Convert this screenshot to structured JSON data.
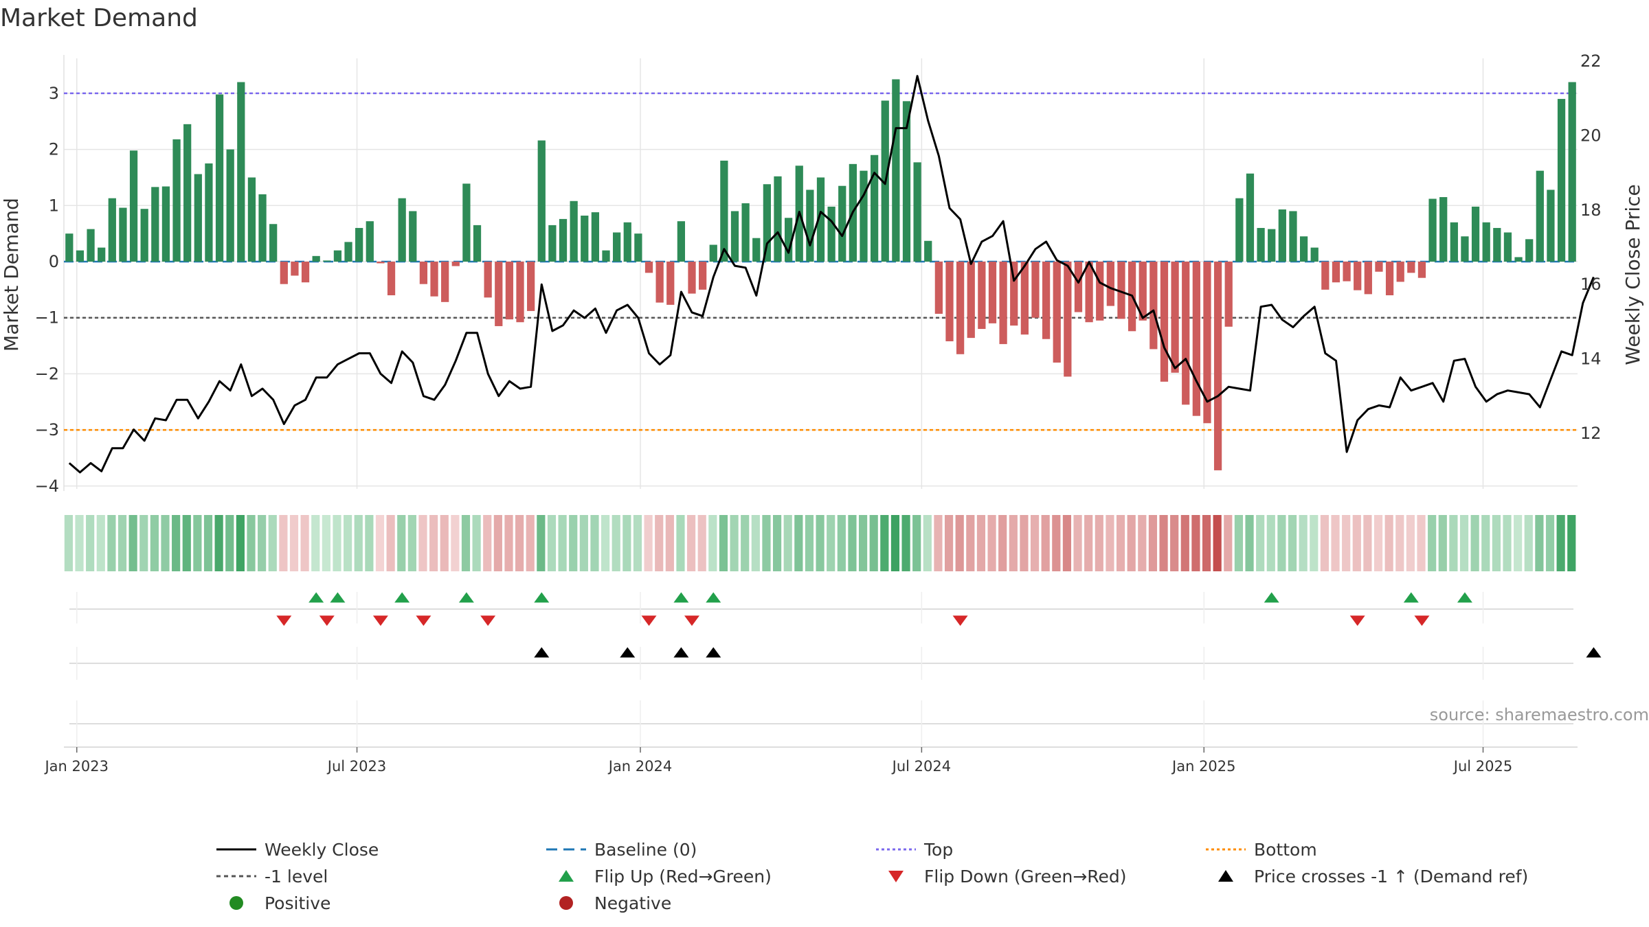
{
  "chart_data": {
    "type": "bar+line",
    "title": "Market Demand",
    "ylabel_left": "Market Demand",
    "ylabel_right": "Weekly Close Price",
    "ylim_left": [
      -4.2,
      3.6
    ],
    "ylim_right": [
      10.5,
      22.2
    ],
    "yticks_left": [
      3,
      2,
      1,
      0,
      -1,
      -2,
      -3,
      -4
    ],
    "ytick_labels_left": [
      "3",
      "2",
      "1",
      "0",
      "−1",
      "−2",
      "−3",
      "−4"
    ],
    "yticks_right": [
      12,
      14,
      16,
      18,
      20,
      22
    ],
    "ytick_labels_right": [
      "12",
      "14",
      "16",
      "18",
      "20",
      "22"
    ],
    "xticks": [
      1.2,
      27.3,
      53.7,
      79.9,
      106.2,
      132.2
    ],
    "xtick_labels": [
      "Jan 2023",
      "Jul 2023",
      "Jan 2024",
      "Jul 2024",
      "Jan 2025",
      "Jul 2025"
    ],
    "reference_lines": {
      "top": 3,
      "bottom": -3,
      "minus_one": -1,
      "baseline": 0
    },
    "demand": [
      0.5,
      0.2,
      0.58,
      0.25,
      1.13,
      0.96,
      1.98,
      0.94,
      1.33,
      1.34,
      2.18,
      2.45,
      1.56,
      1.75,
      2.98,
      2.0,
      3.2,
      1.5,
      1.2,
      0.67,
      -0.4,
      -0.25,
      -0.37,
      0.1,
      0.02,
      0.2,
      0.35,
      0.6,
      0.72,
      -0.03,
      -0.6,
      1.13,
      0.9,
      -0.4,
      -0.62,
      -0.72,
      -0.08,
      1.39,
      0.65,
      -0.64,
      -1.15,
      -1.03,
      -1.08,
      -0.88,
      2.16,
      0.65,
      0.76,
      1.08,
      0.82,
      0.88,
      0.2,
      0.52,
      0.7,
      0.5,
      -0.2,
      -0.73,
      -0.77,
      0.72,
      -0.57,
      -0.5,
      0.3,
      1.8,
      0.9,
      1.04,
      0.42,
      1.38,
      1.52,
      0.78,
      1.71,
      1.28,
      1.5,
      0.98,
      1.35,
      1.74,
      1.62,
      1.9,
      2.87,
      3.25,
      2.86,
      1.77,
      0.37,
      -0.93,
      -1.42,
      -1.65,
      -1.36,
      -1.2,
      -1.1,
      -1.47,
      -1.14,
      -1.3,
      -1.0,
      -1.38,
      -1.8,
      -2.05,
      -0.9,
      -1.08,
      -1.05,
      -0.79,
      -1.02,
      -1.24,
      -1.05,
      -1.56,
      -2.14,
      -1.98,
      -2.55,
      -2.75,
      -2.88,
      -3.72,
      -1.16,
      1.13,
      1.57,
      0.6,
      0.58,
      0.93,
      0.9,
      0.45,
      0.25,
      -0.5,
      -0.37,
      -0.35,
      -0.51,
      -0.58,
      -0.18,
      -0.6,
      -0.36,
      -0.2,
      -0.29,
      1.12,
      1.15,
      0.7,
      0.45,
      0.98,
      0.7,
      0.6,
      0.52,
      0.08,
      0.4,
      1.62,
      1.28,
      2.9,
      3.2
    ],
    "close": [
      11.2,
      10.95,
      11.2,
      10.98,
      11.6,
      11.6,
      12.1,
      11.8,
      12.4,
      12.35,
      12.9,
      12.9,
      12.4,
      12.85,
      13.4,
      13.15,
      13.85,
      13.0,
      13.2,
      12.9,
      12.25,
      12.75,
      12.9,
      13.5,
      13.5,
      13.85,
      14.0,
      14.15,
      14.15,
      13.6,
      13.35,
      14.2,
      13.9,
      13.0,
      12.9,
      13.3,
      13.95,
      14.7,
      14.7,
      13.6,
      13.0,
      13.4,
      13.2,
      13.25,
      16.0,
      14.75,
      14.9,
      15.3,
      15.1,
      15.35,
      14.7,
      15.3,
      15.45,
      15.1,
      14.15,
      13.85,
      14.1,
      15.8,
      15.25,
      15.15,
      16.2,
      16.95,
      16.5,
      16.45,
      15.7,
      17.1,
      17.4,
      16.85,
      17.95,
      17.05,
      17.95,
      17.7,
      17.3,
      17.95,
      18.4,
      19.0,
      18.7,
      20.2,
      20.2,
      21.6,
      20.4,
      19.45,
      18.05,
      17.75,
      16.55,
      17.15,
      17.3,
      17.7,
      16.1,
      16.5,
      16.95,
      17.15,
      16.65,
      16.5,
      16.05,
      16.6,
      16.05,
      15.9,
      15.8,
      15.7,
      15.1,
      15.3,
      14.3,
      13.75,
      14.0,
      13.4,
      12.85,
      13.0,
      13.25,
      13.2,
      13.15,
      15.4,
      15.45,
      15.05,
      14.85,
      15.15,
      15.4,
      14.15,
      13.95,
      11.5,
      12.35,
      12.65,
      12.75,
      12.7,
      13.5,
      13.15,
      13.25,
      13.35,
      12.85,
      13.95,
      14.0,
      13.25,
      12.85,
      13.05,
      13.15,
      13.1,
      13.05,
      12.7,
      13.45,
      14.2,
      14.1,
      15.5,
      16.2
    ],
    "heat_strip": "tile colors follow Market Demand sign and magnitude",
    "flip_up_x": [
      23.5,
      25.5,
      31.5,
      37.5,
      44.5,
      57.5,
      60.5,
      112.5,
      125.5,
      130.5
    ],
    "flip_down_x": [
      20.5,
      24.5,
      29.5,
      33.5,
      39.5,
      54.5,
      58.5,
      83.5,
      120.5,
      126.5
    ],
    "price_cross_x": [
      44.5,
      52.5,
      57.5,
      60.5,
      142.5
    ],
    "legend": [
      {
        "label": "Weekly Close",
        "marker": "line-black"
      },
      {
        "label": "Baseline (0)",
        "marker": "dash-blue"
      },
      {
        "label": "Top",
        "marker": "dot-purple"
      },
      {
        "label": "Bottom",
        "marker": "dot-orange"
      },
      {
        "label": "-1 level",
        "marker": "dash-gray"
      },
      {
        "label": "Flip Up (Red→Green)",
        "marker": "triangle-up-green"
      },
      {
        "label": "Flip Down (Green→Red)",
        "marker": "triangle-down-red"
      },
      {
        "label": "Price crosses -1 ↑ (Demand ref)",
        "marker": "triangle-up-black"
      },
      {
        "label": "Positive",
        "marker": "circle-green"
      },
      {
        "label": "Negative",
        "marker": "circle-red"
      }
    ],
    "source": "source: sharemaestro.com"
  },
  "colors": {
    "positive": "#2e8b57",
    "negative": "#cd5c5c",
    "line": "#000000",
    "top": "#7b68ee",
    "bottom": "#ff8c00",
    "minus_one": "#555555",
    "baseline": "#1f77b4",
    "flip_up": "#22a04b",
    "flip_down": "#d62728",
    "grid": "#e5e5e5",
    "text": "#333333",
    "source": "#999999",
    "legend_positive": "#228b22",
    "legend_negative": "#b22222"
  }
}
